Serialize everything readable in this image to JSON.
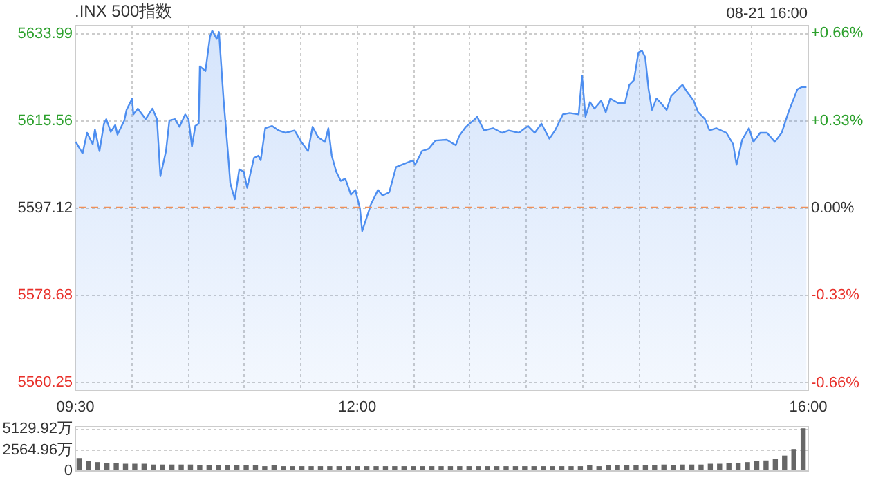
{
  "chart_data": [
    {
      "type": "area",
      "title": ".INX 500指数",
      "annotations": [
        "08-21 16:00"
      ],
      "x": [
        9.51,
        9.57,
        9.61,
        9.66,
        9.68,
        9.72,
        9.76,
        9.78,
        9.82,
        9.86,
        9.88,
        9.94,
        9.96,
        10.01,
        10.02,
        10.06,
        10.13,
        10.19,
        10.23,
        10.26,
        10.31,
        10.34,
        10.39,
        10.43,
        10.48,
        10.51,
        10.54,
        10.57,
        10.6,
        10.61,
        10.66,
        10.7,
        10.72,
        10.76,
        10.78,
        10.82,
        10.86,
        10.88,
        10.92,
        10.96,
        11.0,
        11.03,
        11.09,
        11.13,
        11.15,
        11.19,
        11.25,
        11.31,
        11.37,
        11.45,
        11.51,
        11.57,
        11.61,
        11.66,
        11.72,
        11.75,
        11.78,
        11.82,
        11.86,
        11.9,
        11.95,
        11.99,
        12.03,
        12.05,
        12.09,
        12.13,
        12.19,
        12.23,
        12.29,
        12.35,
        12.43,
        12.5,
        12.52,
        12.58,
        12.64,
        12.7,
        12.8,
        12.88,
        12.91,
        12.97,
        13.05,
        13.07,
        13.13,
        13.21,
        13.29,
        13.35,
        13.44,
        13.52,
        13.58,
        13.64,
        13.71,
        13.76,
        13.83,
        13.89,
        13.97,
        14.0,
        14.03,
        14.07,
        14.11,
        14.17,
        14.21,
        14.25,
        14.32,
        14.38,
        14.42,
        14.46,
        14.5,
        14.53,
        14.56,
        14.59,
        14.62,
        14.66,
        14.7,
        14.75,
        14.79,
        14.85,
        14.89,
        14.93,
        14.99,
        15.03,
        15.09,
        15.13,
        15.19,
        15.28,
        15.34,
        15.37,
        15.42,
        15.48,
        15.52,
        15.58,
        15.64,
        15.71,
        15.77,
        15.83,
        15.87,
        15.91,
        15.95,
        15.99
      ],
      "series": [
        {
          "color": "#4d8ef0",
          "values": [
            5610.97,
            5608.53,
            5612.89,
            5610.48,
            5613.58,
            5609.02,
            5614.83,
            5615.79,
            5613.09,
            5614.54,
            5612.51,
            5615.5,
            5617.73,
            5620.14,
            5616.78,
            5618.02,
            5615.79,
            5618.02,
            5615.79,
            5603.71,
            5609.02,
            5615.5,
            5615.79,
            5614.16,
            5616.78,
            5615.79,
            5609.98,
            5614.34,
            5614.83,
            5626.94,
            5625.95,
            5633.21,
            5634.48,
            5632.74,
            5634.19,
            5620.14,
            5608.53,
            5602.26,
            5598.86,
            5605.16,
            5604.67,
            5601.27,
            5607.57,
            5608.07,
            5607.08,
            5613.87,
            5614.34,
            5613.38,
            5612.89,
            5613.38,
            5610.97,
            5609.02,
            5614.16,
            5611.93,
            5610.97,
            5613.87,
            5608.07,
            5604.67,
            5602.72,
            5603.22,
            5599.82,
            5600.81,
            5596.92,
            5592.1,
            5595.0,
            5597.91,
            5600.81,
            5599.65,
            5600.32,
            5605.63,
            5606.41,
            5607.08,
            5606.12,
            5609.02,
            5609.52,
            5611.26,
            5611.43,
            5610.27,
            5612.22,
            5614.16,
            5615.79,
            5616.28,
            5613.38,
            5613.87,
            5612.89,
            5613.38,
            5612.89,
            5614.34,
            5612.89,
            5614.83,
            5611.64,
            5613.38,
            5616.78,
            5617.07,
            5616.78,
            5624.99,
            5616.28,
            5619.39,
            5618.02,
            5619.68,
            5617.24,
            5620.14,
            5619.18,
            5619.18,
            5623.05,
            5624.03,
            5629.84,
            5630.3,
            5628.85,
            5622.09,
            5617.73,
            5620.14,
            5619.18,
            5617.73,
            5620.64,
            5622.09,
            5623.05,
            5621.59,
            5619.68,
            5617.24,
            5615.79,
            5613.38,
            5613.87,
            5612.89,
            5610.48,
            5606.12,
            5611.43,
            5613.87,
            5610.97,
            5612.89,
            5612.89,
            5610.97,
            5612.89,
            5617.24,
            5619.68,
            5622.09,
            5622.58,
            5622.58
          ]
        }
      ],
      "xlim": [
        9.5,
        16
      ],
      "xticks": [
        {
          "value": 9.5,
          "label": "09:30"
        },
        {
          "value": 10,
          "label": null
        },
        {
          "value": 10.5,
          "label": null
        },
        {
          "value": 11,
          "label": null
        },
        {
          "value": 11.5,
          "label": null
        },
        {
          "value": 12,
          "label": "12:00"
        },
        {
          "value": 12.5,
          "label": null
        },
        {
          "value": 13,
          "label": null
        },
        {
          "value": 13.5,
          "label": null
        },
        {
          "value": 14,
          "label": null
        },
        {
          "value": 14.5,
          "label": null
        },
        {
          "value": 15,
          "label": null
        },
        {
          "value": 15.5,
          "label": null
        },
        {
          "value": 16,
          "label": "16:00"
        }
      ],
      "ylim": [
        5558.5,
        5635.7
      ],
      "yticks": [
        5560.25,
        5578.68,
        5597.12,
        5615.56,
        5633.99
      ],
      "y2lim": [
        -0.69,
        0.69
      ],
      "y2ticks": [
        {
          "value": -0.66,
          "label": "-0.66%"
        },
        {
          "value": -0.33,
          "label": "-0.33%"
        },
        {
          "value": 0,
          "label": "0.00%"
        },
        {
          "value": 0.33,
          "label": "+0.33%"
        },
        {
          "value": 0.66,
          "label": "+0.66%"
        }
      ],
      "ref_lines": [
        {
          "axis": "y",
          "value": 5597.12,
          "color": "#f0915a",
          "line_style": "dashed"
        }
      ],
      "grid": true
    },
    {
      "type": "bar",
      "categories": [
        null,
        null,
        null,
        null,
        null,
        null,
        null,
        null,
        null,
        null,
        null,
        null,
        null,
        null,
        null,
        null,
        null,
        null,
        null,
        null,
        null,
        null,
        null,
        null,
        null,
        null,
        null,
        null,
        null,
        null,
        null,
        null,
        null,
        null,
        null,
        null,
        null,
        null,
        null,
        null,
        null,
        null,
        null,
        null,
        null,
        null,
        null,
        null,
        null,
        null,
        null,
        null,
        null,
        null,
        null,
        null,
        null,
        null,
        null,
        null,
        null,
        null,
        null,
        null,
        null,
        null,
        null,
        null,
        null,
        null,
        null,
        null,
        null,
        null,
        null,
        null,
        null,
        null,
        null
      ],
      "series": [
        {
          "color": "#666666",
          "values": [
            1500,
            1100,
            1000,
            900,
            900,
            800,
            800,
            800,
            700,
            700,
            700,
            700,
            700,
            600,
            600,
            600,
            600,
            600,
            600,
            600,
            500,
            600,
            500,
            500,
            500,
            500,
            500,
            500,
            500,
            500,
            500,
            500,
            500,
            500,
            500,
            500,
            500,
            500,
            500,
            500,
            500,
            500,
            500,
            500,
            500,
            500,
            500,
            500,
            500,
            500,
            500,
            500,
            500,
            500,
            500,
            600,
            500,
            600,
            600,
            600,
            600,
            600,
            600,
            700,
            600,
            700,
            700,
            700,
            800,
            800,
            900,
            900,
            1000,
            1100,
            1200,
            1400,
            1800,
            2600,
            5129.92
          ]
        }
      ],
      "ylim": [
        0,
        5400
      ],
      "yticks": [
        0,
        {
          "value": 2564.96,
          "label": "2564.96万"
        },
        {
          "value": 5129.92,
          "label": "5129.92万"
        }
      ],
      "grid": "y",
      "tick_labels": "y"
    }
  ]
}
